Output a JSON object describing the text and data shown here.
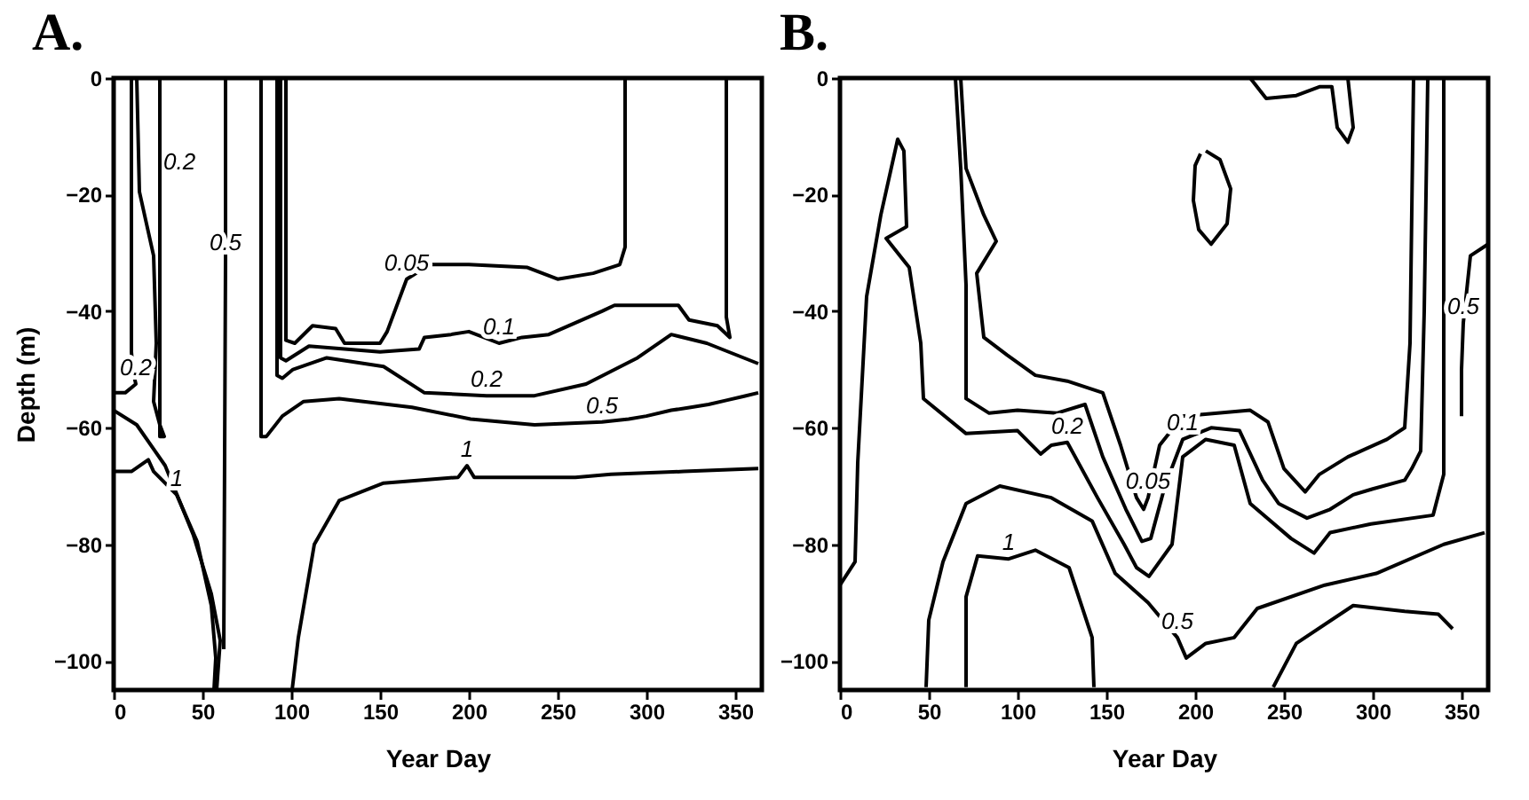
{
  "chart_data": [
    {
      "type": "line",
      "title": "A.",
      "xlabel": "Year Day",
      "ylabel": "Depth (m)",
      "annotations": [
        {
          "text": "0.2",
          "x": 28,
          "y": -14.5
        }
      ],
      "xlim": [
        0,
        365
      ],
      "ylim": [
        -105,
        0
      ],
      "xticks": [
        0,
        50,
        100,
        150,
        200,
        250,
        300,
        350
      ],
      "yticks": [
        0,
        -20,
        -40,
        -60,
        -80,
        -100
      ],
      "grid": false,
      "series": [
        {
          "name": "0.05",
          "color": "#000000",
          "x": [
            97,
            97,
            102,
            112,
            125,
            130,
            150,
            154,
            165,
            178,
            200,
            233,
            250,
            270,
            285,
            288,
            288
          ],
          "values": [
            0,
            -45,
            -45.5,
            -42.5,
            -43,
            -45.5,
            -45.5,
            -43.5,
            -34.5,
            -32,
            -32,
            -32.5,
            -34.5,
            -33.5,
            -32,
            -29,
            0
          ]
        },
        {
          "name": "0.1",
          "color": "#000000",
          "x": [
            94,
            94,
            97,
            110,
            130,
            150,
            172,
            175,
            190,
            200,
            217,
            230,
            245,
            275,
            282,
            318,
            324,
            340,
            347,
            345,
            345
          ],
          "values": [
            0,
            -48,
            -48.5,
            -46,
            -46.5,
            -47,
            -46.5,
            -44.5,
            -44,
            -43.5,
            -45.5,
            -44.5,
            -44,
            -40,
            -39,
            -39,
            -41.5,
            -42.5,
            -44.5,
            -41,
            0
          ]
        },
        {
          "name": "0.2",
          "color": "#000000",
          "x": [
            92,
            92,
            95,
            101,
            120,
            152,
            175,
            210,
            237,
            266,
            295,
            314,
            334,
            363
          ],
          "values": [
            0,
            -51,
            -51.5,
            -50,
            -48,
            -49.5,
            -54,
            -54.5,
            -54.5,
            -52.5,
            -48,
            -44,
            -45.5,
            -49
          ]
        },
        {
          "name": "0.5",
          "color": "#000000",
          "x": [
            83,
            83,
            86,
            95,
            107,
            127,
            168,
            201,
            237,
            275,
            290,
            300,
            314,
            325,
            335,
            345,
            355,
            363
          ],
          "values": [
            0,
            -61.5,
            -61.5,
            -58,
            -55.5,
            -55,
            -56.5,
            -58.5,
            -59.5,
            -59,
            -58.5,
            -58,
            -57,
            -56.5,
            -56,
            -55.3,
            -54.6,
            -54
          ]
        },
        {
          "name": "0.5",
          "color": "#000000",
          "x": [
            63,
            63,
            62
          ],
          "values": [
            0,
            -31,
            -98
          ]
        },
        {
          "name": "1",
          "color": "#000000",
          "x": [
            100.5,
            104,
            113,
            127,
            152,
            194,
            199,
            203,
            234,
            260,
            280,
            321,
            363
          ],
          "values": [
            -105,
            -96,
            -80,
            -72.5,
            -69.5,
            -68.5,
            -66.5,
            -68.5,
            -68.5,
            -68.5,
            -68,
            -67.5,
            -67
          ]
        },
        {
          "color": "#000000",
          "x": [
            13,
            14.5,
            22.5,
            24,
            22.5,
            26,
            28.5,
            26,
            26,
            26
          ],
          "values": [
            0,
            -19.5,
            -30.5,
            -45.5,
            -55.5,
            -59.5,
            -61.5,
            -61.5,
            -45.5,
            0
          ]
        },
        {
          "name": "0.2",
          "color": "#000000",
          "x": [
            10,
            10,
            11,
            12.5,
            6.5,
            0
          ],
          "values": [
            0,
            -47,
            -50.5,
            -52.5,
            -54,
            -54
          ]
        },
        {
          "color": "#000000",
          "x": [
            0,
            13,
            29,
            45,
            55,
            60,
            58
          ],
          "values": [
            -57,
            -59.5,
            -66.5,
            -78.5,
            -88.5,
            -96.5,
            -105
          ]
        },
        {
          "name": "1",
          "color": "#000000",
          "x": [
            0,
            10,
            19.5,
            22.5,
            35.5,
            47,
            55,
            57.5,
            56.5
          ],
          "values": [
            -67.5,
            -67.5,
            -65.5,
            -67.5,
            -71.5,
            -79.5,
            -90.5,
            -99.5,
            -105
          ]
        }
      ]
    },
    {
      "type": "line",
      "title": "B.",
      "xlabel": "Year Day",
      "xlim": [
        0,
        365
      ],
      "ylim": [
        -105,
        0
      ],
      "xticks": [
        0,
        50,
        100,
        150,
        200,
        250,
        300,
        350
      ],
      "yticks": [
        0,
        -20,
        -40,
        -60,
        -80,
        -100
      ],
      "grid": false,
      "series": [
        {
          "name": "0.05",
          "color": "#000000",
          "x": [
            68,
            71,
            81,
            88,
            77,
            81,
            94,
            110,
            128,
            148,
            158,
            167,
            171,
            173.5,
            180,
            193,
            231,
            241,
            250,
            262,
            270,
            286,
            308,
            318,
            321,
            323
          ],
          "values": [
            0,
            -15.5,
            -23.5,
            -28,
            -33.5,
            -44.5,
            -47.5,
            -51,
            -52,
            -54,
            -63,
            -72,
            -74,
            -72,
            -63,
            -58,
            -57,
            -59,
            -67,
            -71,
            -68,
            -65,
            -62,
            -60,
            -45.5,
            0
          ]
        },
        {
          "name": "0.1",
          "color": "#000000",
          "x": [
            65,
            68,
            71,
            71,
            84,
            100,
            122,
            138,
            148,
            161,
            170,
            175,
            183,
            193,
            209,
            225,
            238,
            247,
            263,
            276,
            289,
            300,
            318,
            322,
            327,
            329,
            331
          ],
          "values": [
            0,
            -15.5,
            -35.5,
            -55,
            -57.5,
            -57,
            -57.5,
            -56,
            -65,
            -74,
            -79.5,
            -79,
            -70,
            -62,
            -60,
            -60.5,
            -69,
            -73,
            -75.5,
            -74,
            -71.5,
            -70.5,
            -69,
            -67,
            -64,
            -40,
            0
          ]
        },
        {
          "name": "0.2",
          "color": "#000000",
          "x": [
            0,
            8.5,
            10,
            15,
            23,
            32.5,
            36,
            37.5,
            26,
            39,
            45.5,
            47,
            71,
            100,
            113,
            119,
            128,
            145,
            160,
            167,
            174,
            187,
            193,
            206,
            222,
            231,
            254,
            267,
            276,
            299,
            334,
            340,
            340
          ],
          "values": [
            -87,
            -83,
            -66,
            -37.5,
            -23.5,
            -10.5,
            -12.5,
            -25.5,
            -27.5,
            -32.5,
            -45.5,
            -55,
            -61,
            -60.5,
            -64.5,
            -63,
            -62.5,
            -72,
            -80,
            -84,
            -85.5,
            -80,
            -65,
            -62,
            -63,
            -73,
            -79,
            -81.5,
            -78,
            -76.5,
            -75,
            -68,
            0
          ]
        },
        {
          "name": "0.5",
          "color": "#000000",
          "x": [
            48.5,
            50,
            58,
            71,
            90,
            119,
            142,
            155,
            173.5,
            190,
            195,
            206,
            222,
            235,
            273,
            302,
            340,
            363
          ],
          "values": [
            -104.5,
            -93,
            -83,
            -73,
            -70,
            -72,
            -76,
            -85,
            -90,
            -96,
            -99.5,
            -97,
            -96,
            -91,
            -87,
            -85,
            -80,
            -78
          ]
        },
        {
          "name": "1",
          "color": "#000000",
          "x": [
            71,
            71,
            71,
            77.5,
            95,
            110,
            129,
            142,
            143
          ],
          "values": [
            -104.5,
            -95,
            -89,
            -82,
            -82.5,
            -81,
            -84,
            -96,
            -104.5
          ]
        },
        {
          "color": "#000000",
          "x": [
            244,
            257,
            289,
            318,
            337,
            345
          ],
          "values": [
            -104.5,
            -97,
            -90.5,
            -91.5,
            -92,
            -94.5
          ]
        },
        {
          "name": "0.5",
          "color": "#000000",
          "x": [
            365,
            355,
            351,
            350,
            350
          ],
          "values": [
            -28.5,
            -30.5,
            -42,
            -50,
            -58
          ]
        },
        {
          "color": "#000000",
          "x": [
            206,
            214,
            220,
            218,
            209,
            202,
            199,
            200,
            203
          ],
          "values": [
            -12.5,
            -14,
            -19,
            -25,
            -28.5,
            -26,
            -21,
            -15,
            -13
          ]
        },
        {
          "color": "#000000",
          "x": [
            231,
            240,
            257,
            270,
            277,
            280,
            286,
            289,
            286
          ],
          "values": [
            0,
            -3.5,
            -3,
            -1.5,
            -1.5,
            -8.5,
            -11,
            -8.5,
            0
          ]
        }
      ]
    }
  ]
}
